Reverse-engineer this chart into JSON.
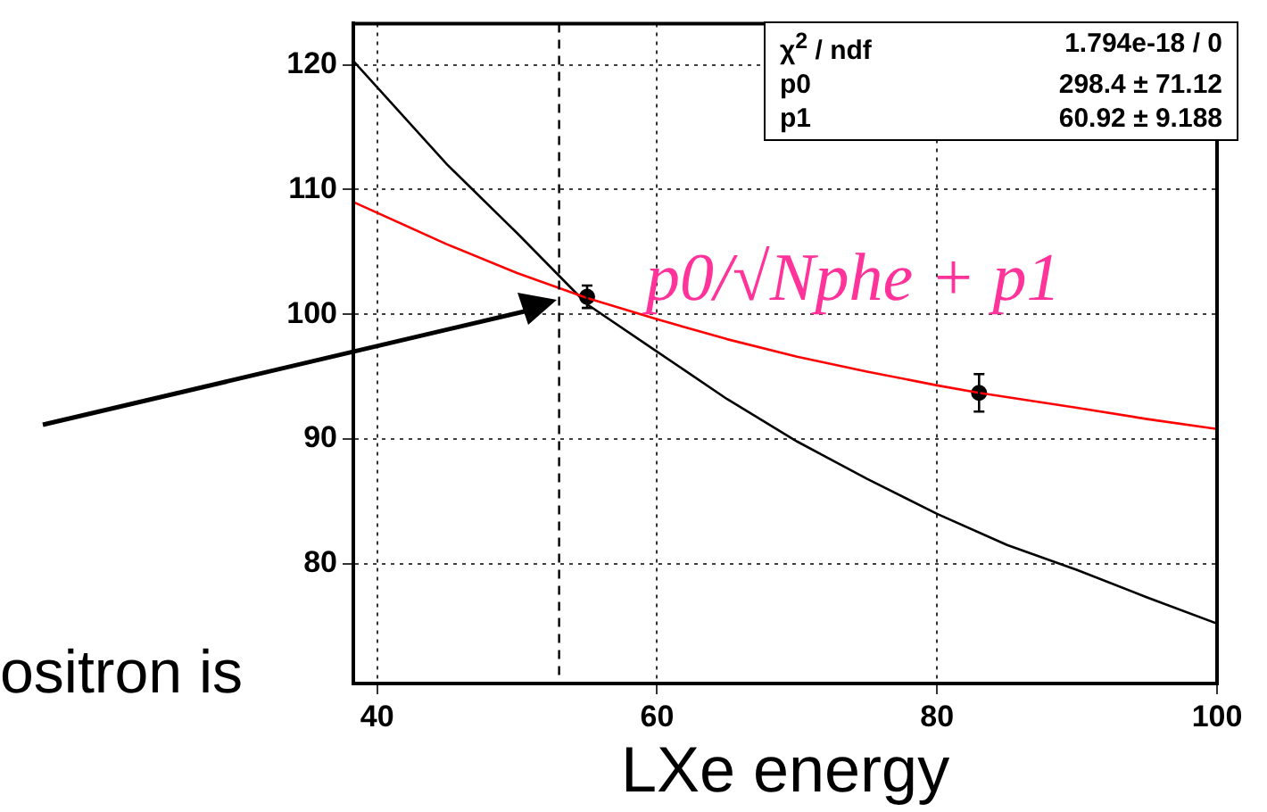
{
  "chart_data": {
    "type": "line",
    "xlabel": "LXe energy",
    "xlim": [
      38.3,
      100
    ],
    "ylim": [
      70.4,
      123.3
    ],
    "xticks": [
      40,
      60,
      80,
      100
    ],
    "yticks": [
      80,
      90,
      100,
      110,
      120
    ],
    "grid": true,
    "legend": false,
    "series": [
      {
        "color": "#ff0000",
        "marker": "none",
        "x": [
          38.3,
          45,
          50,
          55,
          60,
          65,
          70,
          75,
          80,
          83,
          90,
          95,
          100
        ],
        "values": [
          109,
          105.6,
          103.3,
          101.3,
          99.6,
          98,
          96.6,
          95.4,
          94.3,
          93.7,
          92.5,
          91.6,
          90.8
        ]
      },
      {
        "color": "#000000",
        "marker": "none",
        "x": [
          38.3,
          45,
          50,
          55,
          60,
          65,
          70,
          75,
          80,
          85,
          90,
          95,
          100
        ],
        "values": [
          120.3,
          112,
          106.5,
          100.8,
          97,
          93.2,
          89.8,
          86.8,
          84,
          81.5,
          79.5,
          77.3,
          75.2
        ]
      },
      {
        "type": "scatter",
        "color": "#000000",
        "marker": "circle",
        "x": [
          55,
          83
        ],
        "values": [
          101.4,
          93.7
        ],
        "errors": [
          0.9,
          1.5
        ]
      }
    ],
    "ref_lines": [
      {
        "axis": "x",
        "value": 53,
        "line_style": "dashed",
        "color": "#000000"
      }
    ],
    "annotations": [
      "χ$^{2}$ / ndf",
      "1.794e-18 / 0",
      "p0",
      "298.4 ± 71.12",
      "p1",
      "60.92 ± 9.188",
      "p0/√Nphe + p1",
      "ositron is"
    ]
  }
}
